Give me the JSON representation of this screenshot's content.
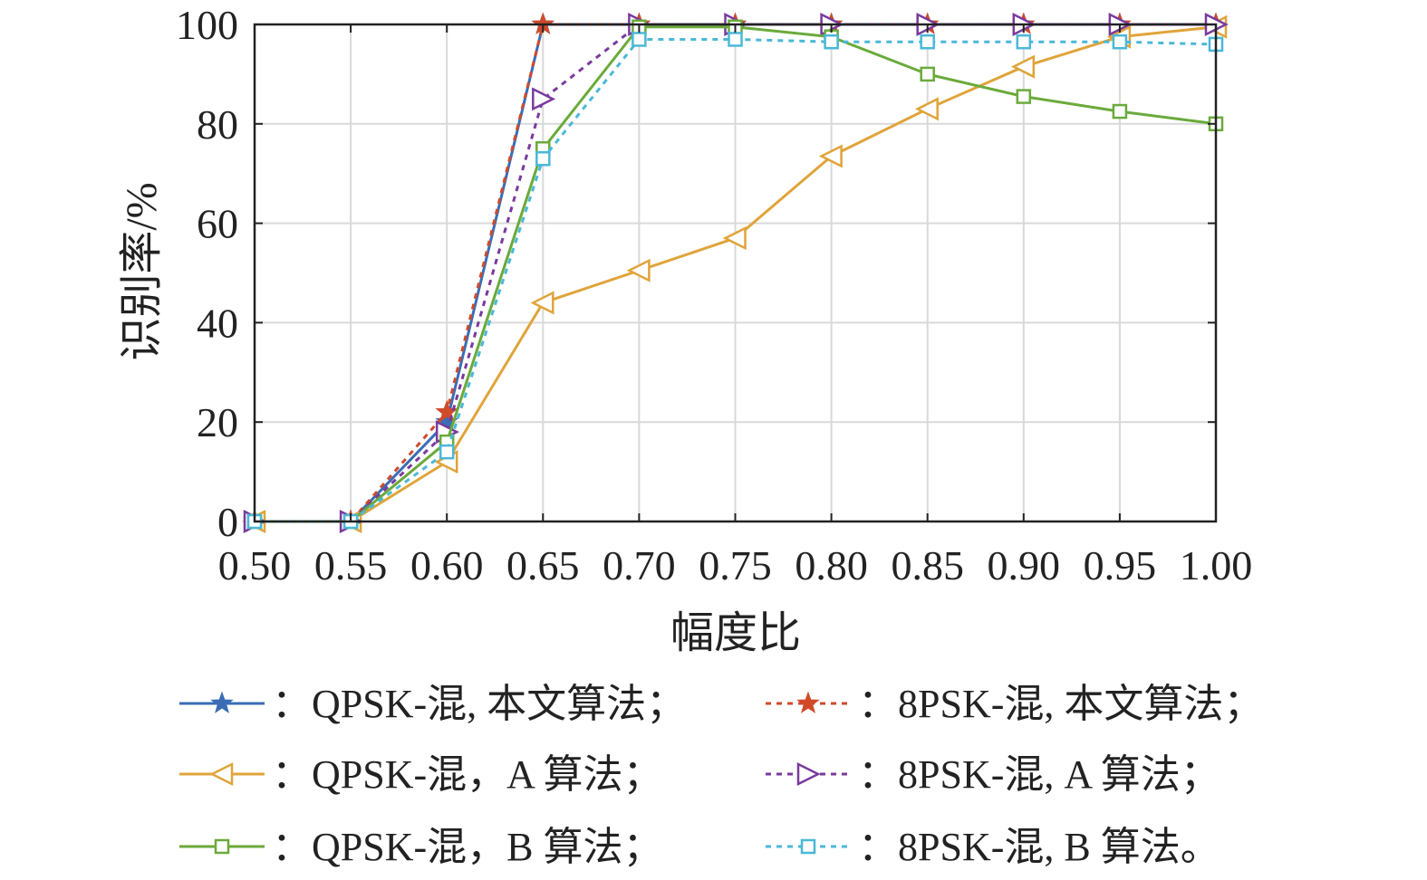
{
  "chart_data": {
    "type": "line",
    "xlabel": "幅度比",
    "ylabel": "识别率/%",
    "xlim": [
      0.5,
      1.0
    ],
    "ylim": [
      0,
      100
    ],
    "grid": true,
    "legend_placement": "bottom",
    "x": [
      0.5,
      0.55,
      0.6,
      0.65,
      0.7,
      0.75,
      0.8,
      0.85,
      0.9,
      0.95,
      1.0
    ],
    "x_tick_labels": [
      "0.50",
      "0.55",
      "0.60",
      "0.65",
      "0.70",
      "0.75",
      "0.80",
      "0.85",
      "0.90",
      "0.95",
      "1.00"
    ],
    "y_tick_labels": [
      "0",
      "20",
      "40",
      "60",
      "80",
      "100"
    ],
    "series": [
      {
        "name": "：QPSK-混, 本文算法；",
        "color": "#3a6db5",
        "dashed": false,
        "marker": "star",
        "values": [
          0,
          0,
          20,
          100,
          100,
          100,
          100,
          100,
          100,
          100,
          100
        ]
      },
      {
        "name": "：8PSK-混, 本文算法；",
        "color": "#d04a2a",
        "dashed": true,
        "marker": "star",
        "values": [
          0,
          0,
          22,
          100,
          100,
          100,
          100,
          100,
          100,
          100,
          100
        ]
      },
      {
        "name": "：QPSK-混，A 算法；",
        "color": "#e0a43a",
        "dashed": false,
        "marker": "triangle-left",
        "values": [
          0,
          0,
          12,
          44,
          50.5,
          57,
          73.5,
          83,
          91.5,
          97.5,
          99.5
        ]
      },
      {
        "name": "：8PSK-混, A 算法；",
        "color": "#7a3a9e",
        "dashed": true,
        "marker": "triangle-right",
        "values": [
          0,
          0,
          18,
          85,
          100,
          100,
          100,
          100,
          100,
          100,
          100
        ]
      },
      {
        "name": "：QPSK-混，B 算法；",
        "color": "#6aaa3a",
        "dashed": false,
        "marker": "square",
        "values": [
          0,
          0,
          16,
          75,
          99.5,
          99.5,
          97.5,
          90,
          85.5,
          82.5,
          80
        ]
      },
      {
        "name": "：8PSK-混, B 算法。",
        "color": "#4ab8d8",
        "dashed": true,
        "marker": "square",
        "values": [
          0,
          0,
          14,
          73,
          97,
          97,
          96.5,
          96.5,
          96.5,
          96.5,
          96
        ]
      }
    ]
  }
}
